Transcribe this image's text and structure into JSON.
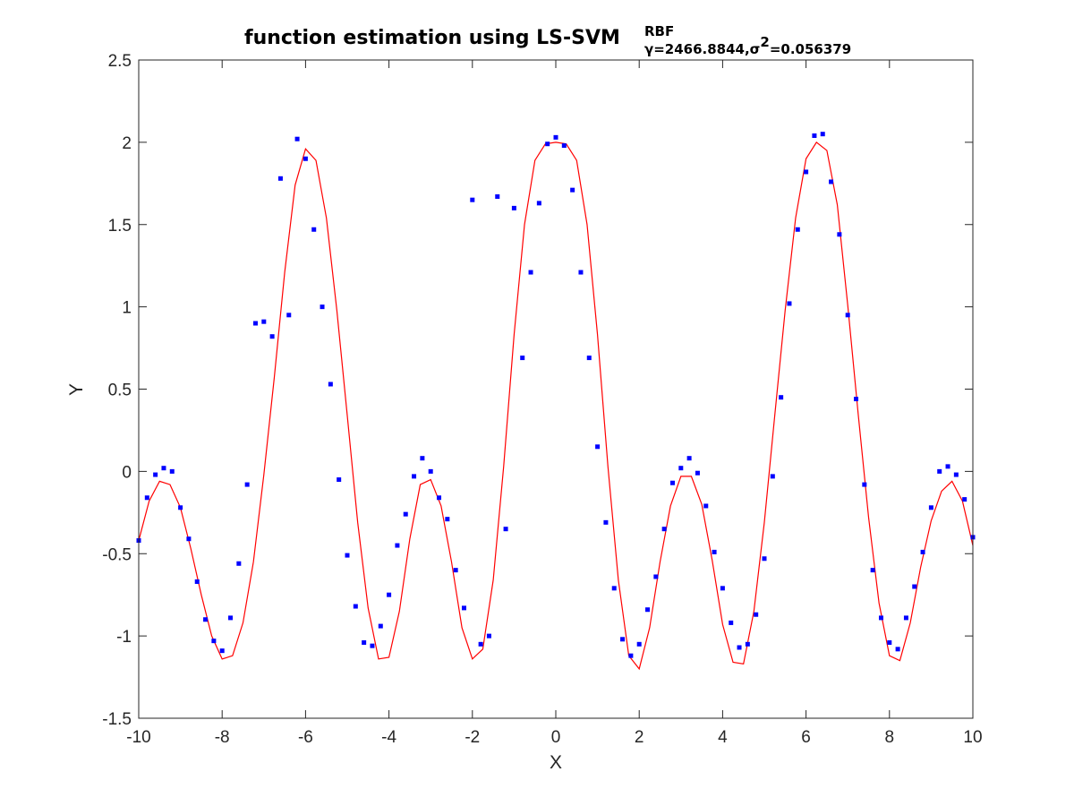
{
  "chart_data": {
    "type": "scatter",
    "title": {
      "main": "function estimation using  LS-SVM",
      "superscript": "RBF",
      "subscript": "γ=2466.8844,σ",
      "subscript_sup": "2",
      "subscript_tail": "=0.056379"
    },
    "xlabel": "X",
    "ylabel": "Y",
    "xlim": [
      -10,
      10
    ],
    "ylim": [
      -1.5,
      2.5
    ],
    "xticks": [
      -10,
      -8,
      -6,
      -4,
      -2,
      0,
      2,
      4,
      6,
      8,
      10
    ],
    "xtick_labels": [
      "-10",
      "-8",
      "-6",
      "-4",
      "-2",
      "0",
      "2",
      "4",
      "6",
      "8",
      "10"
    ],
    "yticks": [
      -1.5,
      -1,
      -0.5,
      0,
      0.5,
      1,
      1.5,
      2,
      2.5
    ],
    "ytick_labels": [
      "-1.5",
      "-1",
      "-0.5",
      "0",
      "0.5",
      "1",
      "1.5",
      "2",
      "2.5"
    ],
    "grid": false,
    "box": true,
    "series": [
      {
        "kind": "points",
        "color": "#0000ff",
        "x": [
          -10.0,
          -9.8,
          -9.6,
          -9.4,
          -9.2,
          -9.0,
          -8.8,
          -8.6,
          -8.4,
          -8.2,
          -8.0,
          -7.8,
          -7.6,
          -7.4,
          -7.2,
          -7.0,
          -6.8,
          -6.6,
          -6.4,
          -6.2,
          -6.0,
          -5.8,
          -5.6,
          -5.4,
          -5.2,
          -5.0,
          -4.8,
          -4.6,
          -4.4,
          -4.2,
          -4.0,
          -3.8,
          -3.6,
          -3.4,
          -3.2,
          -3.0,
          -2.8,
          -2.6,
          -2.4,
          -2.2,
          -2.0,
          -1.8,
          -1.6,
          -1.4,
          -1.2,
          -1.0,
          -0.8,
          -0.6,
          -0.4,
          -0.2,
          0.0,
          0.2,
          0.4,
          0.6,
          0.8,
          1.0,
          1.2,
          1.4,
          1.6,
          1.8,
          2.0,
          2.2,
          2.4,
          2.6,
          2.8,
          3.0,
          3.2,
          3.4,
          3.6,
          3.8,
          4.0,
          4.2,
          4.4,
          4.6,
          4.8,
          5.0,
          5.2,
          5.4,
          5.6,
          5.8,
          6.0,
          6.2,
          6.4,
          6.6,
          6.8,
          7.0,
          7.2,
          7.4,
          7.6,
          7.8,
          8.0,
          8.2,
          8.4,
          8.6,
          8.8,
          9.0,
          9.2,
          9.4,
          9.6,
          9.8,
          10.0
        ],
        "y": [
          -0.42,
          -0.16,
          -0.02,
          0.02,
          0.0,
          -0.22,
          -0.41,
          -0.67,
          -0.9,
          -1.03,
          -1.09,
          -0.89,
          -0.56,
          -0.08,
          0.9,
          0.91,
          0.82,
          1.78,
          0.95,
          2.02,
          1.9,
          1.47,
          1.0,
          0.53,
          -0.05,
          -0.51,
          -0.82,
          -1.04,
          -1.06,
          -0.94,
          -0.75,
          -0.45,
          -0.26,
          -0.03,
          0.08,
          0.0,
          -0.16,
          -0.29,
          -0.6,
          -0.83,
          1.65,
          -1.05,
          -1.0,
          1.67,
          -0.35,
          1.6,
          0.69,
          1.21,
          1.63,
          1.99,
          2.03,
          1.98,
          1.71,
          1.21,
          0.69,
          0.15,
          -0.31,
          -0.71,
          -1.02,
          -1.12,
          -1.05,
          -0.84,
          -0.64,
          -0.35,
          -0.07,
          0.02,
          0.08,
          -0.01,
          -0.21,
          -0.49,
          -0.71,
          -0.92,
          -1.07,
          -1.05,
          -0.87,
          -0.53,
          -0.03,
          0.45,
          1.02,
          1.47,
          1.82,
          2.04,
          2.05,
          1.76,
          1.44,
          0.95,
          0.44,
          -0.08,
          -0.6,
          -0.89,
          -1.04,
          -1.08,
          -0.89,
          -0.7,
          -0.49,
          -0.22,
          0.0,
          0.03,
          -0.02,
          -0.17,
          -0.4
        ]
      },
      {
        "kind": "line",
        "color": "#ff0000",
        "function": "cos(x) + cos(2*x)/... fitted LS-SVM curve",
        "x": [
          -10.0,
          -9.75,
          -9.5,
          -9.25,
          -9.0,
          -8.75,
          -8.5,
          -8.25,
          -8.0,
          -7.75,
          -7.5,
          -7.25,
          -7.0,
          -6.75,
          -6.5,
          -6.25,
          -6.0,
          -5.75,
          -5.5,
          -5.25,
          -5.0,
          -4.75,
          -4.5,
          -4.25,
          -4.0,
          -3.75,
          -3.5,
          -3.25,
          -3.0,
          -2.75,
          -2.5,
          -2.25,
          -2.0,
          -1.75,
          -1.5,
          -1.25,
          -1.0,
          -0.75,
          -0.5,
          -0.25,
          0.0,
          0.25,
          0.5,
          0.75,
          1.0,
          1.25,
          1.5,
          1.75,
          2.0,
          2.25,
          2.5,
          2.75,
          3.0,
          3.25,
          3.5,
          3.75,
          4.0,
          4.25,
          4.5,
          4.75,
          5.0,
          5.25,
          5.5,
          5.75,
          6.0,
          6.25,
          6.5,
          6.75,
          7.0,
          7.25,
          7.5,
          7.75,
          8.0,
          8.25,
          8.5,
          8.75,
          9.0,
          9.25,
          9.5,
          9.75,
          10.0
        ],
        "y": [
          -0.42,
          -0.18,
          -0.06,
          -0.08,
          -0.22,
          -0.47,
          -0.75,
          -1.0,
          -1.14,
          -1.12,
          -0.92,
          -0.55,
          -0.02,
          0.57,
          1.21,
          1.74,
          1.96,
          1.89,
          1.54,
          0.98,
          0.34,
          -0.31,
          -0.83,
          -1.14,
          -1.13,
          -0.85,
          -0.41,
          -0.08,
          -0.05,
          -0.21,
          -0.55,
          -0.95,
          -1.14,
          -1.08,
          -0.66,
          0.03,
          0.83,
          1.5,
          1.89,
          1.99,
          2.0,
          1.99,
          1.89,
          1.5,
          0.83,
          0.03,
          -0.66,
          -1.12,
          -1.2,
          -0.95,
          -0.55,
          -0.21,
          -0.03,
          -0.03,
          -0.2,
          -0.54,
          -0.93,
          -1.16,
          -1.17,
          -0.85,
          -0.31,
          0.34,
          0.98,
          1.54,
          1.9,
          2.0,
          1.95,
          1.62,
          1.01,
          0.35,
          -0.28,
          -0.8,
          -1.12,
          -1.15,
          -0.92,
          -0.58,
          -0.3,
          -0.12,
          -0.06,
          -0.18,
          -0.45
        ]
      }
    ]
  }
}
